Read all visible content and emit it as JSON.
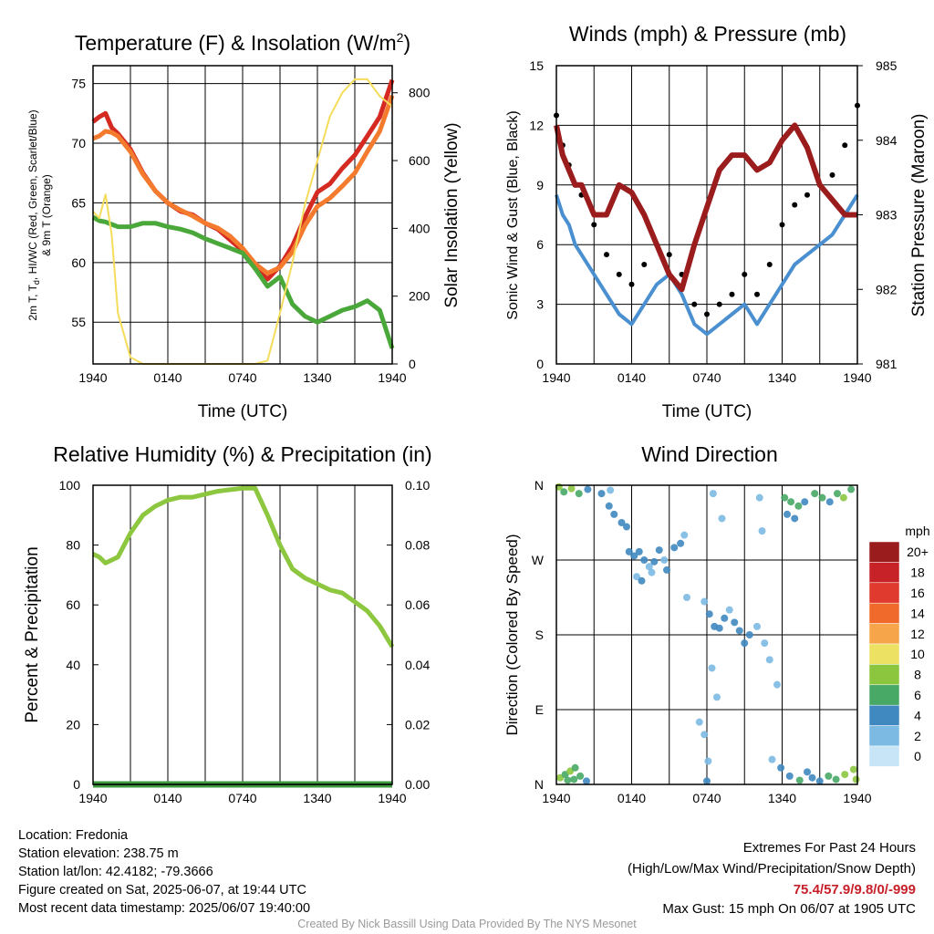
{
  "chart_data": [
    {
      "type": "line",
      "title": "Temperature (F) & Insolation (W/m²)",
      "xlabel": "Time (UTC)",
      "ylabel": "2m T, Td, HI/WC (Red, Green, Scarlet/Blue) & 9m T (Orange)",
      "ylabel_line1": "2m T, T",
      "ylabel_sub": "d",
      "ylabel_line1_rest": ", HI/WC (Red, Green, Scarlet/Blue)",
      "ylabel_line2": "& 9m T (Orange)",
      "y2label": "Solar Insolation (Yellow)",
      "x_ticks": [
        "1940",
        "0140",
        "0740",
        "1340",
        "1940"
      ],
      "ylim": [
        51.5,
        76.5
      ],
      "y_ticks": [
        55,
        60,
        65,
        70,
        75
      ],
      "y2lim": [
        0,
        880
      ],
      "y2_ticks": [
        0,
        200,
        400,
        600,
        800
      ],
      "grid": true,
      "x": [
        0,
        0.5,
        1,
        1.5,
        2,
        3,
        4,
        5,
        6,
        7,
        8,
        9,
        10,
        11,
        12,
        13,
        14,
        15,
        16,
        17,
        18,
        19,
        20,
        21,
        22,
        23,
        24
      ],
      "series": [
        {
          "color": "#d42a22",
          "values": [
            71.8,
            72.2,
            72.5,
            71.3,
            70.8,
            69.5,
            67.5,
            66.0,
            65.0,
            64.3,
            64.0,
            63.3,
            62.8,
            61.9,
            61.0,
            59.5,
            58.6,
            59.7,
            61.4,
            63.8,
            65.9,
            66.6,
            67.9,
            69.0,
            70.6,
            72.2,
            75.3
          ]
        },
        {
          "color": "#f47a2e",
          "values": [
            70.4,
            70.6,
            71.0,
            70.9,
            70.6,
            69.3,
            67.4,
            66.0,
            65.0,
            64.4,
            63.9,
            63.3,
            62.9,
            62.2,
            61.2,
            59.9,
            59.1,
            59.6,
            60.9,
            63.1,
            64.7,
            65.4,
            66.4,
            67.5,
            69.3,
            71.0,
            74.0
          ]
        },
        {
          "color": "#4aa83a",
          "values": [
            63.8,
            63.5,
            63.4,
            63.2,
            63.0,
            63.0,
            63.3,
            63.3,
            63.0,
            62.8,
            62.5,
            62.0,
            61.6,
            61.2,
            60.8,
            59.5,
            58.0,
            58.8,
            56.5,
            55.5,
            55.0,
            55.5,
            56.0,
            56.3,
            56.8,
            56.0,
            52.8
          ]
        },
        {
          "color": "#f5dc5a",
          "axis": "y2",
          "values": [
            450,
            430,
            500,
            380,
            150,
            20,
            0,
            0,
            0,
            0,
            0,
            0,
            0,
            0,
            0,
            0,
            10,
            150,
            300,
            470,
            600,
            730,
            800,
            840,
            840,
            790,
            760
          ]
        }
      ]
    },
    {
      "type": "scatter",
      "title": "Winds (mph) & Pressure (mb)",
      "xlabel": "Time (UTC)",
      "ylabel": "Sonic Wind & Gust (Blue, Black)",
      "y2label": "Station Pressure (Maroon)",
      "x_ticks": [
        "1940",
        "0140",
        "0740",
        "1340",
        "1940"
      ],
      "ylim": [
        0,
        15
      ],
      "y_ticks": [
        0,
        3,
        6,
        9,
        12,
        15
      ],
      "y2lim": [
        981,
        985
      ],
      "y2_ticks": [
        981,
        982,
        983,
        984,
        985
      ],
      "grid": true,
      "x": [
        0,
        0.5,
        1,
        1.5,
        2,
        3,
        4,
        5,
        6,
        7,
        8,
        9,
        10,
        11,
        12,
        13,
        14,
        15,
        16,
        17,
        18,
        19,
        20,
        21,
        22,
        23,
        24
      ],
      "series": [
        {
          "color": "#4a90d0",
          "values": [
            8.5,
            7.5,
            7.0,
            6.0,
            5.5,
            4.5,
            3.5,
            2.5,
            2.0,
            3.0,
            4.0,
            4.5,
            3.5,
            2.0,
            1.5,
            2.0,
            2.5,
            3.0,
            2.0,
            3.0,
            4.0,
            5.0,
            5.5,
            6.0,
            6.5,
            7.5,
            8.5
          ]
        },
        {
          "color": "#000000",
          "values": [
            12.5,
            11.0,
            10.0,
            9.0,
            8.5,
            7.0,
            5.5,
            4.5,
            4.0,
            5.0,
            6.0,
            5.5,
            4.5,
            3.0,
            2.5,
            3.0,
            3.5,
            4.5,
            3.5,
            5.0,
            7.0,
            8.0,
            8.5,
            9.0,
            9.5,
            11.0,
            13.0
          ]
        },
        {
          "color": "#9a1c1c",
          "axis": "y2",
          "values": [
            984.2,
            983.8,
            983.6,
            983.4,
            983.4,
            983.0,
            983.0,
            983.4,
            983.3,
            983.0,
            982.6,
            982.2,
            982.0,
            982.6,
            983.1,
            983.6,
            983.8,
            983.8,
            983.6,
            983.7,
            984.0,
            984.2,
            983.9,
            983.4,
            983.2,
            983.0,
            983.0
          ]
        }
      ]
    },
    {
      "type": "line",
      "title": "Relative Humidity (%) & Precipitation (in)",
      "xlabel": "",
      "ylabel": "Percent & Precipitation",
      "x_ticks": [
        "1940",
        "0140",
        "0740",
        "1340",
        "1940"
      ],
      "ylim": [
        0,
        100
      ],
      "y_ticks": [
        0,
        20,
        40,
        60,
        80,
        100
      ],
      "y2lim": [
        0,
        0.1
      ],
      "y2_ticks": [
        "0.00",
        "0.02",
        "0.04",
        "0.06",
        "0.08",
        "0.10"
      ],
      "grid": true,
      "x": [
        0,
        0.5,
        1,
        1.5,
        2,
        3,
        4,
        5,
        6,
        7,
        8,
        9,
        10,
        11,
        12,
        13,
        14,
        15,
        16,
        17,
        18,
        19,
        20,
        21,
        22,
        23,
        24
      ],
      "series": [
        {
          "color": "#8dc63f",
          "values": [
            77,
            76,
            74,
            75,
            76,
            84,
            90,
            93,
            95,
            96,
            96,
            97,
            98,
            98.5,
            99,
            99,
            90,
            80,
            72,
            69,
            67,
            65,
            64,
            61,
            58,
            53,
            46
          ]
        },
        {
          "color": "#3e9a3e",
          "axis": "y2",
          "values": [
            0,
            0,
            0,
            0,
            0,
            0,
            0,
            0,
            0,
            0,
            0,
            0,
            0,
            0,
            0,
            0,
            0,
            0,
            0,
            0,
            0,
            0,
            0,
            0,
            0,
            0,
            0
          ]
        }
      ]
    },
    {
      "type": "scatter",
      "title": "Wind Direction",
      "ylabel": "Direction (Colored By Speed)",
      "x_ticks": [
        "1940",
        "0140",
        "0740",
        "1340",
        "1940"
      ],
      "y_ticks": [
        "N",
        "E",
        "S",
        "W",
        "N"
      ],
      "ylim": [
        0,
        360
      ],
      "grid": true,
      "legend": {
        "title": "mph",
        "labels": [
          "20+",
          "18",
          "16",
          "14",
          "12",
          "10",
          "8",
          "6",
          "4",
          "2",
          "0"
        ],
        "colors": [
          "#9a1c1c",
          "#c82229",
          "#e03a2e",
          "#f06a2c",
          "#f7a54a",
          "#ece163",
          "#8cc63f",
          "#48a866",
          "#3f88c0",
          "#7cb9e3",
          "#c7e5f6"
        ]
      },
      "points": [
        {
          "x": 0.2,
          "y": 358,
          "s": 7
        },
        {
          "x": 0.6,
          "y": 352,
          "s": 6
        },
        {
          "x": 1.2,
          "y": 356,
          "s": 7
        },
        {
          "x": 1.8,
          "y": 350,
          "s": 6
        },
        {
          "x": 2.5,
          "y": 355,
          "s": 4
        },
        {
          "x": 4.3,
          "y": 354,
          "s": 2
        },
        {
          "x": 3.6,
          "y": 350,
          "s": 3
        },
        {
          "x": 0.3,
          "y": 8,
          "s": 7
        },
        {
          "x": 0.7,
          "y": 12,
          "s": 6
        },
        {
          "x": 1.1,
          "y": 16,
          "s": 7
        },
        {
          "x": 1.5,
          "y": 20,
          "s": 6
        },
        {
          "x": 1.9,
          "y": 10,
          "s": 5
        },
        {
          "x": 2.4,
          "y": 4,
          "s": 4
        },
        {
          "x": 0.9,
          "y": 5,
          "s": 6
        },
        {
          "x": 1.4,
          "y": 6,
          "s": 6
        },
        {
          "x": 4.2,
          "y": 335,
          "s": 3
        },
        {
          "x": 4.6,
          "y": 325,
          "s": 4
        },
        {
          "x": 5.2,
          "y": 315,
          "s": 3
        },
        {
          "x": 5.6,
          "y": 310,
          "s": 3
        },
        {
          "x": 5.8,
          "y": 280,
          "s": 3
        },
        {
          "x": 6.2,
          "y": 275,
          "s": 3
        },
        {
          "x": 6.6,
          "y": 280,
          "s": 4
        },
        {
          "x": 7.0,
          "y": 270,
          "s": 3
        },
        {
          "x": 7.4,
          "y": 262,
          "s": 2
        },
        {
          "x": 7.8,
          "y": 268,
          "s": 3
        },
        {
          "x": 8.2,
          "y": 282,
          "s": 4
        },
        {
          "x": 8.6,
          "y": 270,
          "s": 2
        },
        {
          "x": 9.4,
          "y": 285,
          "s": 4
        },
        {
          "x": 9.9,
          "y": 290,
          "s": 3
        },
        {
          "x": 10.2,
          "y": 300,
          "s": 2
        },
        {
          "x": 6.4,
          "y": 250,
          "s": 2
        },
        {
          "x": 6.8,
          "y": 245,
          "s": 3
        },
        {
          "x": 7.6,
          "y": 255,
          "s": 2
        },
        {
          "x": 8.8,
          "y": 258,
          "s": 3
        },
        {
          "x": 10.4,
          "y": 225,
          "s": 1
        },
        {
          "x": 11.8,
          "y": 220,
          "s": 2
        },
        {
          "x": 12.2,
          "y": 205,
          "s": 3
        },
        {
          "x": 12.6,
          "y": 190,
          "s": 3
        },
        {
          "x": 13.0,
          "y": 188,
          "s": 4
        },
        {
          "x": 13.4,
          "y": 200,
          "s": 3
        },
        {
          "x": 13.8,
          "y": 210,
          "s": 2
        },
        {
          "x": 14.2,
          "y": 195,
          "s": 4
        },
        {
          "x": 14.6,
          "y": 185,
          "s": 3
        },
        {
          "x": 15.0,
          "y": 170,
          "s": 3
        },
        {
          "x": 15.4,
          "y": 180,
          "s": 4
        },
        {
          "x": 16.0,
          "y": 190,
          "s": 2
        },
        {
          "x": 16.6,
          "y": 170,
          "s": 2
        },
        {
          "x": 17.0,
          "y": 150,
          "s": 2
        },
        {
          "x": 17.6,
          "y": 120,
          "s": 2
        },
        {
          "x": 12.4,
          "y": 140,
          "s": 2
        },
        {
          "x": 12.8,
          "y": 105,
          "s": 1
        },
        {
          "x": 11.4,
          "y": 75,
          "s": 1
        },
        {
          "x": 11.8,
          "y": 60,
          "s": 1
        },
        {
          "x": 12.1,
          "y": 28,
          "s": 2
        },
        {
          "x": 12.0,
          "y": 4,
          "s": 3
        },
        {
          "x": 12.5,
          "y": 350,
          "s": 1
        },
        {
          "x": 13.2,
          "y": 320,
          "s": 1
        },
        {
          "x": 16.2,
          "y": 345,
          "s": 1
        },
        {
          "x": 16.4,
          "y": 305,
          "s": 1
        },
        {
          "x": 18.2,
          "y": 345,
          "s": 5
        },
        {
          "x": 18.7,
          "y": 340,
          "s": 6
        },
        {
          "x": 19.3,
          "y": 335,
          "s": 5
        },
        {
          "x": 19.8,
          "y": 340,
          "s": 4
        },
        {
          "x": 20.6,
          "y": 350,
          "s": 6
        },
        {
          "x": 21.2,
          "y": 345,
          "s": 5
        },
        {
          "x": 21.8,
          "y": 340,
          "s": 4
        },
        {
          "x": 22.4,
          "y": 350,
          "s": 6
        },
        {
          "x": 22.9,
          "y": 345,
          "s": 7
        },
        {
          "x": 23.5,
          "y": 355,
          "s": 6
        },
        {
          "x": 18.4,
          "y": 325,
          "s": 4
        },
        {
          "x": 19.0,
          "y": 320,
          "s": 3
        },
        {
          "x": 17.2,
          "y": 30,
          "s": 2
        },
        {
          "x": 17.9,
          "y": 20,
          "s": 3
        },
        {
          "x": 18.6,
          "y": 10,
          "s": 4
        },
        {
          "x": 19.4,
          "y": 5,
          "s": 5
        },
        {
          "x": 20.4,
          "y": 8,
          "s": 4
        },
        {
          "x": 21.0,
          "y": 4,
          "s": 3
        },
        {
          "x": 21.7,
          "y": 10,
          "s": 6
        },
        {
          "x": 22.3,
          "y": 6,
          "s": 5
        },
        {
          "x": 23.0,
          "y": 12,
          "s": 7
        },
        {
          "x": 23.7,
          "y": 18,
          "s": 8
        },
        {
          "x": 23.9,
          "y": 6,
          "s": 8
        },
        {
          "x": 20.0,
          "y": 15,
          "s": 3
        }
      ]
    }
  ],
  "footer_left": [
    "Location: Fredonia",
    "Station elevation: 238.75 m",
    "Station lat/lon: 42.4182; -79.3666",
    "Figure created on Sat, 2025-06-07, at 19:44 UTC",
    "Most recent data timestamp: 2025/06/07 19:40:00"
  ],
  "extremes": {
    "heading": "Extremes For Past 24 Hours",
    "legend": "(High/Low/Max Wind/Precipitation/Snow Depth)",
    "values": "75.4/57.9/9.8/0/-999",
    "values_color": "#c8202a",
    "gust": "Max Gust: 15 mph On 06/07 at 1905 UTC"
  },
  "credit": "Created By Nick Bassill Using Data Provided By The NYS Mesonet"
}
